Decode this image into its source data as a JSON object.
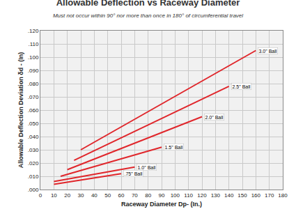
{
  "chart_data": {
    "type": "line",
    "title": "Allowable Deflection vs Raceway Diameter",
    "subtitle": "Must not occur within 90° nor more than once in 180° of circumferential travel",
    "x_label": "Raceway Diameter Dp- (In.)",
    "y_label": "Allowable Deflection Deviation δd - (In)",
    "color": "#e0262b",
    "grid": true,
    "data_labels": true,
    "xlim": [
      0,
      180
    ],
    "xticks": [
      0,
      10,
      20,
      30,
      40,
      50,
      60,
      70,
      80,
      90,
      100,
      110,
      120,
      130,
      140,
      150,
      160,
      170,
      180
    ],
    "ylim": [
      0,
      0.12
    ],
    "yticks": [
      {
        "value": 0,
        "label": ".000"
      },
      {
        "value": 0.01,
        "label": ".010"
      },
      {
        "value": 0.02,
        "label": ".020"
      },
      {
        "value": 0.03,
        "label": ".030"
      },
      {
        "value": 0.04,
        "label": ".040"
      },
      {
        "value": 0.05,
        "label": ".050"
      },
      {
        "value": 0.06,
        "label": ".060"
      },
      {
        "value": 0.07,
        "label": ".070"
      },
      {
        "value": 0.08,
        "label": ".080"
      },
      {
        "value": 0.09,
        "label": ".090"
      },
      {
        "value": 0.1,
        "label": ".100"
      },
      {
        "value": 0.11,
        "label": ".110"
      },
      {
        "value": 0.12,
        "label": ".120"
      }
    ],
    "series": [
      {
        "name": "3.0\" Ball",
        "x": [
          30,
          160
        ],
        "values": [
          0.03,
          0.105
        ]
      },
      {
        "name": "2.5\" Ball",
        "x": [
          25,
          140
        ],
        "values": [
          0.022,
          0.078
        ]
      },
      {
        "name": "2.0\" Ball",
        "x": [
          20,
          120
        ],
        "values": [
          0.015,
          0.055
        ]
      },
      {
        "name": "1.5\" Ball",
        "x": [
          15,
          90
        ],
        "values": [
          0.01,
          0.032
        ]
      },
      {
        "name": "1.0\" Ball",
        "x": [
          10,
          70
        ],
        "values": [
          0.006,
          0.017
        ]
      },
      {
        "name": ".75\" Ball",
        "x": [
          10,
          60
        ],
        "values": [
          0.004,
          0.012
        ]
      }
    ]
  }
}
